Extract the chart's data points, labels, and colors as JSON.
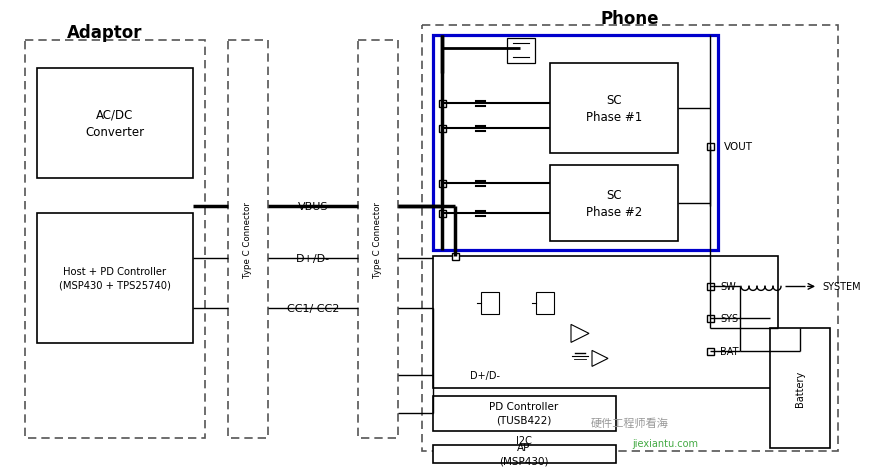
{
  "bg_color": "#ffffff",
  "color_blue": "#0000cc",
  "color_black": "#000000",
  "color_dash": "#555555",
  "adaptor_label": "Adaptor",
  "phone_label": "Phone",
  "acdc_label": "AC/DC\nConverter",
  "pd_adaptor_label": "Host + PD Controller\n(MSP430 + TPS25740)",
  "typeC_label": "Type C Connector",
  "sc1_label": "SC\nPhase #1",
  "sc2_label": "SC\nPhase #2",
  "pd_phone_label": "PD Controller\n(TUSB422)",
  "ap_label": "AP\n(MSP430)",
  "battery_label": "Battery",
  "vbus_label": "VBUS",
  "dpdm_label": "D+/D-",
  "cc_label": "CC1/ CC2",
  "vout_label": "VOUT",
  "sw_label": "SW",
  "sys_label": "SYS",
  "bat_label": "BAT",
  "system_label": "SYSTEM",
  "i2c_label": "I2C",
  "dpdm_inner_label": "D+/D-",
  "watermark1": "硬件工程师看海",
  "watermark2": "jiexiantu.com"
}
